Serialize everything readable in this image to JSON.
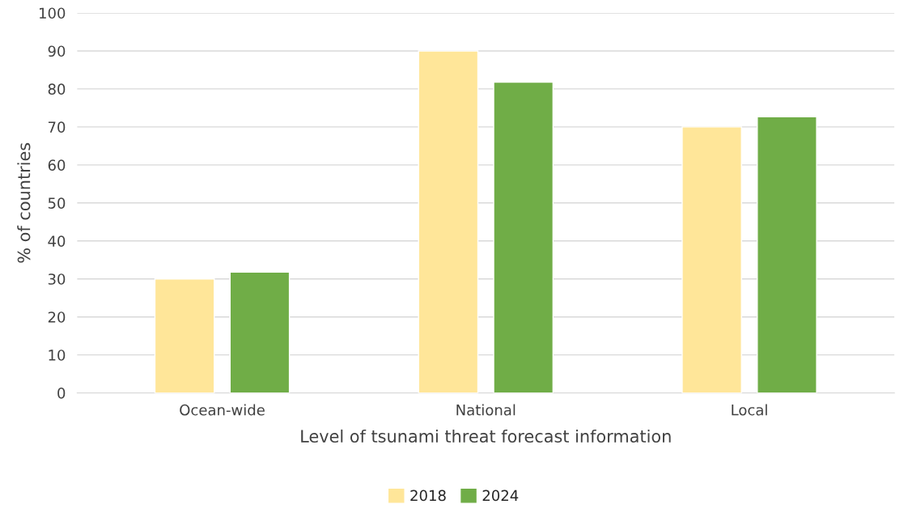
{
  "chart_data": {
    "type": "bar",
    "xlabel": "Level of tsunami threat forecast information",
    "ylabel": "% of countries",
    "categories": [
      "Ocean-wide",
      "National",
      "Local"
    ],
    "series": [
      {
        "name": "2018",
        "color": "#ffe699",
        "values": [
          30,
          90,
          70
        ]
      },
      {
        "name": "2024",
        "color": "#70ad47",
        "values": [
          31.8,
          81.8,
          72.7
        ]
      }
    ],
    "ylim": [
      0,
      100
    ],
    "yticks": [
      0,
      10,
      20,
      30,
      40,
      50,
      60,
      70,
      80,
      90,
      100
    ],
    "grid": "y",
    "legend": "bottom"
  }
}
